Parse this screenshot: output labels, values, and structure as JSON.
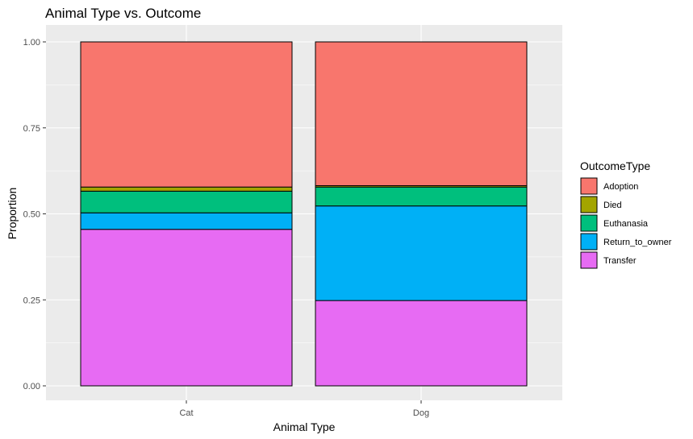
{
  "chart_data": {
    "type": "bar",
    "stacked": true,
    "title": "Animal Type vs. Outcome",
    "xlabel": "Animal Type",
    "ylabel": "Proportion",
    "categories": [
      "Cat",
      "Dog"
    ],
    "ylim": [
      0,
      1
    ],
    "yticks": [
      "0.00",
      "0.25",
      "0.50",
      "0.75",
      "1.00"
    ],
    "grid": true,
    "legend": {
      "title": "OutcomeType",
      "position": "right"
    },
    "series": [
      {
        "name": "Adoption",
        "color": "#F8766D",
        "values": [
          0.422,
          0.418
        ]
      },
      {
        "name": "Died",
        "color": "#A3A500",
        "values": [
          0.012,
          0.004
        ]
      },
      {
        "name": "Euthanasia",
        "color": "#00BF7D",
        "values": [
          0.063,
          0.055
        ]
      },
      {
        "name": "Return_to_owner",
        "color": "#00B0F6",
        "values": [
          0.048,
          0.275
        ]
      },
      {
        "name": "Transfer",
        "color": "#E76BF3",
        "values": [
          0.455,
          0.248
        ]
      }
    ]
  }
}
